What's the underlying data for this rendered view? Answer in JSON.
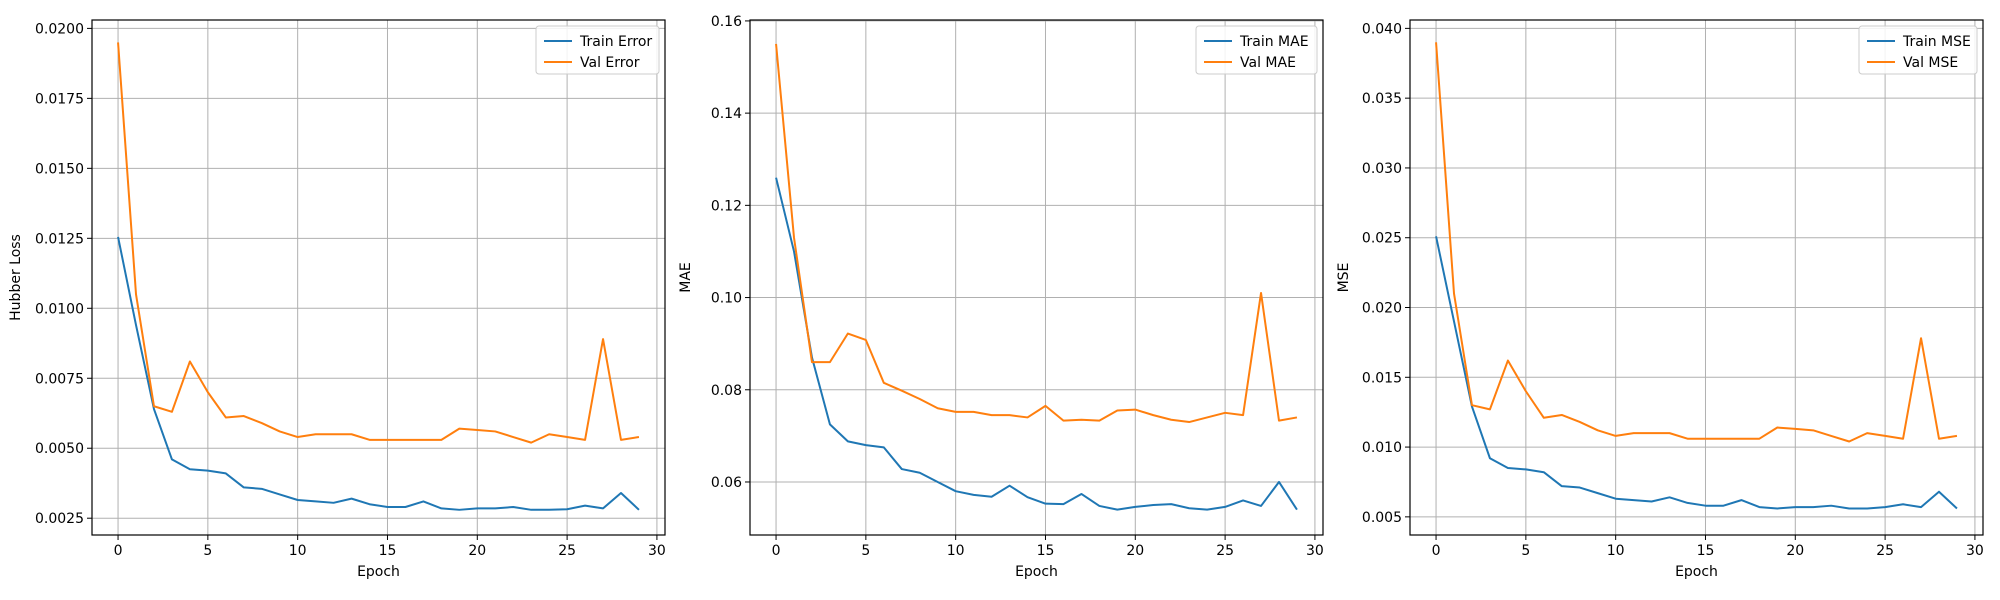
{
  "colors": {
    "train": "#1f77b4",
    "val": "#ff7f0e"
  },
  "chart_data": [
    {
      "type": "line",
      "xlabel": "Epoch",
      "ylabel": "Hubber Loss",
      "xlim": [
        -1.45,
        30.45
      ],
      "ylim": [
        0.0019,
        0.0203
      ],
      "xticks": [
        0,
        5,
        10,
        15,
        20,
        25,
        30
      ],
      "yticks": [
        0.0025,
        0.005,
        0.0075,
        0.01,
        0.0125,
        0.015,
        0.0175,
        0.02
      ],
      "ytick_labels": [
        "0.0025",
        "0.0050",
        "0.0075",
        "0.0100",
        "0.0125",
        "0.0150",
        "0.0175",
        "0.0200"
      ],
      "grid": true,
      "legend": "top-right",
      "x": [
        0,
        1,
        2,
        3,
        4,
        5,
        6,
        7,
        8,
        9,
        10,
        11,
        12,
        13,
        14,
        15,
        16,
        17,
        18,
        19,
        20,
        21,
        22,
        23,
        24,
        25,
        26,
        27,
        28,
        29
      ],
      "series": [
        {
          "name": "Train Error",
          "color": "train",
          "values": [
            0.01255,
            0.0094,
            0.0064,
            0.0046,
            0.00425,
            0.0042,
            0.0041,
            0.0036,
            0.00355,
            0.00335,
            0.00315,
            0.0031,
            0.00305,
            0.0032,
            0.003,
            0.0029,
            0.0029,
            0.0031,
            0.00285,
            0.0028,
            0.00285,
            0.00285,
            0.0029,
            0.0028,
            0.0028,
            0.00282,
            0.00295,
            0.00285,
            0.0034,
            0.0028
          ]
        },
        {
          "name": "Val Error",
          "color": "val",
          "values": [
            0.0195,
            0.0105,
            0.0065,
            0.0063,
            0.0081,
            0.007,
            0.0061,
            0.00615,
            0.0059,
            0.0056,
            0.0054,
            0.0055,
            0.0055,
            0.0055,
            0.0053,
            0.0053,
            0.0053,
            0.0053,
            0.0053,
            0.0057,
            0.00565,
            0.0056,
            0.0054,
            0.0052,
            0.0055,
            0.0054,
            0.0053,
            0.0089,
            0.0053,
            0.0054
          ]
        }
      ]
    },
    {
      "type": "line",
      "xlabel": "Epoch",
      "ylabel": "MAE",
      "xlim": [
        -1.45,
        30.45
      ],
      "ylim": [
        0.0485,
        0.1602
      ],
      "xticks": [
        0,
        5,
        10,
        15,
        20,
        25,
        30
      ],
      "yticks": [
        0.06,
        0.08,
        0.1,
        0.12,
        0.14,
        0.16
      ],
      "ytick_labels": [
        "0.06",
        "0.08",
        "0.10",
        "0.12",
        "0.14",
        "0.16"
      ],
      "grid": true,
      "legend": "top-right",
      "x": [
        0,
        1,
        2,
        3,
        4,
        5,
        6,
        7,
        8,
        9,
        10,
        11,
        12,
        13,
        14,
        15,
        16,
        17,
        18,
        19,
        20,
        21,
        22,
        23,
        24,
        25,
        26,
        27,
        28,
        29
      ],
      "series": [
        {
          "name": "Train MAE",
          "color": "train",
          "values": [
            0.126,
            0.11,
            0.087,
            0.0725,
            0.0688,
            0.068,
            0.0675,
            0.0628,
            0.062,
            0.06,
            0.058,
            0.0572,
            0.0568,
            0.0592,
            0.0567,
            0.0553,
            0.0552,
            0.0574,
            0.0548,
            0.054,
            0.0546,
            0.055,
            0.0552,
            0.0543,
            0.054,
            0.0546,
            0.056,
            0.0548,
            0.06,
            0.054
          ]
        },
        {
          "name": "Val MAE",
          "color": "val",
          "values": [
            0.155,
            0.113,
            0.086,
            0.086,
            0.0922,
            0.0908,
            0.0815,
            0.0798,
            0.078,
            0.076,
            0.0752,
            0.0752,
            0.0745,
            0.0745,
            0.074,
            0.0765,
            0.0733,
            0.0735,
            0.0733,
            0.0755,
            0.0757,
            0.0745,
            0.0735,
            0.073,
            0.074,
            0.075,
            0.0745,
            0.101,
            0.0733,
            0.074
          ]
        }
      ]
    },
    {
      "type": "line",
      "xlabel": "Epoch",
      "ylabel": "MSE",
      "xlim": [
        -1.45,
        30.45
      ],
      "ylim": [
        0.0037,
        0.0406
      ],
      "xticks": [
        0,
        5,
        10,
        15,
        20,
        25,
        30
      ],
      "yticks": [
        0.005,
        0.01,
        0.015,
        0.02,
        0.025,
        0.03,
        0.035,
        0.04
      ],
      "ytick_labels": [
        "0.005",
        "0.010",
        "0.015",
        "0.020",
        "0.025",
        "0.030",
        "0.035",
        "0.040"
      ],
      "grid": true,
      "legend": "top-right",
      "x": [
        0,
        1,
        2,
        3,
        4,
        5,
        6,
        7,
        8,
        9,
        10,
        11,
        12,
        13,
        14,
        15,
        16,
        17,
        18,
        19,
        20,
        21,
        22,
        23,
        24,
        25,
        26,
        27,
        28,
        29
      ],
      "series": [
        {
          "name": "Train MSE",
          "color": "train",
          "values": [
            0.0251,
            0.019,
            0.0129,
            0.0092,
            0.0085,
            0.0084,
            0.0082,
            0.0072,
            0.0071,
            0.0067,
            0.0063,
            0.0062,
            0.0061,
            0.0064,
            0.006,
            0.0058,
            0.0058,
            0.0062,
            0.0057,
            0.0056,
            0.0057,
            0.0057,
            0.0058,
            0.0056,
            0.0056,
            0.0057,
            0.0059,
            0.0057,
            0.0068,
            0.0056
          ]
        },
        {
          "name": "Val MSE",
          "color": "val",
          "values": [
            0.039,
            0.021,
            0.013,
            0.0127,
            0.0162,
            0.014,
            0.0121,
            0.0123,
            0.0118,
            0.0112,
            0.0108,
            0.011,
            0.011,
            0.011,
            0.0106,
            0.0106,
            0.0106,
            0.0106,
            0.0106,
            0.0114,
            0.0113,
            0.0112,
            0.0108,
            0.0104,
            0.011,
            0.0108,
            0.0106,
            0.0178,
            0.0106,
            0.0108
          ]
        }
      ]
    }
  ]
}
